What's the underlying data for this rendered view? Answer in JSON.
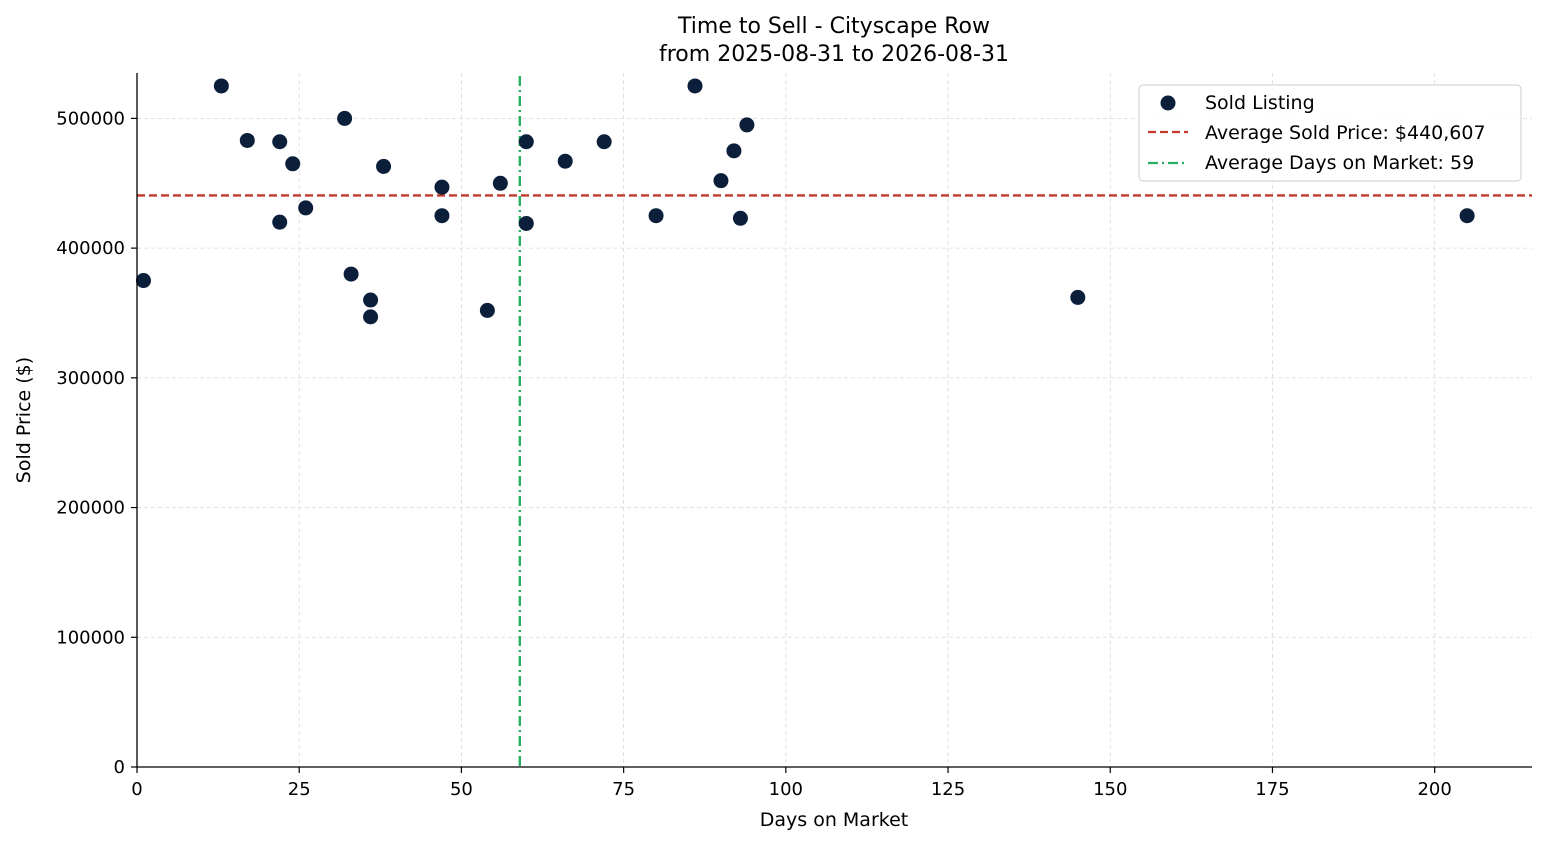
{
  "chart_data": {
    "type": "scatter",
    "title": "Time to Sell - Cityscape Row",
    "subtitle": "from 2025-08-31 to 2026-08-31",
    "xlabel": "Days on Market",
    "ylabel": "Sold Price ($)",
    "xlim": [
      0,
      215
    ],
    "ylim": [
      0,
      535000
    ],
    "xticks": [
      0,
      25,
      50,
      75,
      100,
      125,
      150,
      175,
      200
    ],
    "yticks": [
      0,
      100000,
      200000,
      300000,
      400000,
      500000
    ],
    "grid": true,
    "legend_position": "top-right",
    "series": [
      {
        "name": "Sold Listing",
        "color": "#0b1f3a",
        "points": [
          {
            "x": 1,
            "y": 375000
          },
          {
            "x": 13,
            "y": 525000
          },
          {
            "x": 17,
            "y": 483000
          },
          {
            "x": 22,
            "y": 482000
          },
          {
            "x": 22,
            "y": 420000
          },
          {
            "x": 24,
            "y": 465000
          },
          {
            "x": 26,
            "y": 431000
          },
          {
            "x": 32,
            "y": 500000
          },
          {
            "x": 33,
            "y": 380000
          },
          {
            "x": 36,
            "y": 360000
          },
          {
            "x": 36,
            "y": 347000
          },
          {
            "x": 38,
            "y": 463000
          },
          {
            "x": 47,
            "y": 447000
          },
          {
            "x": 47,
            "y": 425000
          },
          {
            "x": 54,
            "y": 352000
          },
          {
            "x": 56,
            "y": 450000
          },
          {
            "x": 60,
            "y": 482000
          },
          {
            "x": 60,
            "y": 419000
          },
          {
            "x": 66,
            "y": 467000
          },
          {
            "x": 72,
            "y": 482000
          },
          {
            "x": 80,
            "y": 425000
          },
          {
            "x": 86,
            "y": 525000
          },
          {
            "x": 90,
            "y": 452000
          },
          {
            "x": 92,
            "y": 475000
          },
          {
            "x": 93,
            "y": 423000
          },
          {
            "x": 94,
            "y": 495000
          },
          {
            "x": 145,
            "y": 362000
          },
          {
            "x": 205,
            "y": 425000
          }
        ]
      }
    ],
    "reference_lines": [
      {
        "name": "Average Sold Price: $440,607",
        "orientation": "horizontal",
        "value": 440607,
        "style": "dashed",
        "color": "#c0392b"
      },
      {
        "name": "Average Days on Market: 59",
        "orientation": "vertical",
        "value": 59,
        "style": "dashdot",
        "color": "#27ae60"
      }
    ]
  }
}
